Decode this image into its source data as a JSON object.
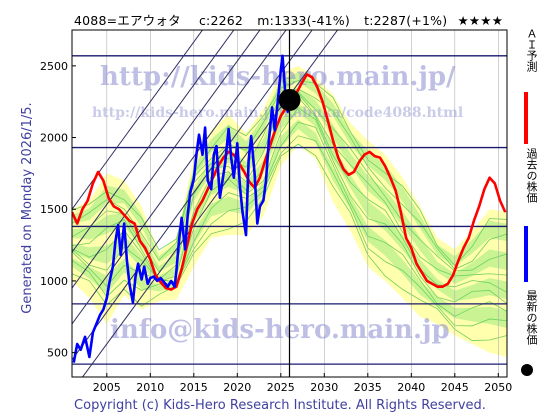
{
  "header": {
    "code": "4088=エアウォタ",
    "current": "c:2262",
    "middle": "m:1333(-41%)",
    "target": "t:2287(+1%)",
    "stars": "★★★★"
  },
  "side_label": "Generated on Monday 2026/1/5.",
  "copyright": "Copyright (c) Kids-Hero Research Institute. All Rights Reserved.",
  "watermarks": {
    "url_main": "http://kids-hero.main.jp/",
    "url_code": "http://kids-hero.main.jp/kabuka/code4088.html",
    "email": "info@kids-hero.main.jp"
  },
  "legend": {
    "prediction": "ＡＩ予測",
    "past": "過去の株価",
    "latest": "最新の株価"
  },
  "colors": {
    "prediction": "#ff0000",
    "past": "#0000ff",
    "latest": "#000000",
    "band_green": "#66dd66",
    "band_yellow": "#ffff99",
    "grid": "#191970",
    "frame": "#000000"
  },
  "chart_data": {
    "type": "line",
    "x_ticks": [
      "2005",
      "2010",
      "2015",
      "2020",
      "2025",
      "2030",
      "2035",
      "2040",
      "2045",
      "2050"
    ],
    "y_ticks": [
      "500",
      "1000",
      "1500",
      "2000",
      "2500"
    ],
    "xlim": [
      2001,
      2051
    ],
    "ylim": [
      330,
      2750
    ],
    "horizontal_levels": [
      420,
      840,
      1380,
      1930,
      2570
    ],
    "current_date_x": 2026.0,
    "latest_point": {
      "x": 2026.0,
      "y": 2262
    },
    "channel_lines": [
      {
        "x0": 2001,
        "y0": 230,
        "x1": 2040,
        "y1": 3450
      },
      {
        "x0": 2001,
        "y0": 450,
        "x1": 2040,
        "y1": 3700
      },
      {
        "x0": 2001,
        "y0": 700,
        "x1": 2040,
        "y1": 3950
      },
      {
        "x0": 2001,
        "y0": 950,
        "x1": 2040,
        "y1": 4200
      },
      {
        "x0": 2001,
        "y0": 1200,
        "x1": 2040,
        "y1": 4450
      },
      {
        "x0": 2001,
        "y0": 1500,
        "x1": 2040,
        "y1": 4750
      }
    ],
    "series": [
      {
        "name": "過去の株価",
        "x": [
          2001.2,
          2001.6,
          2002.0,
          2002.5,
          2003.0,
          2003.4,
          2003.8,
          2004.2,
          2004.6,
          2005.0,
          2005.3,
          2005.7,
          2006.0,
          2006.3,
          2006.6,
          2007.0,
          2007.3,
          2007.6,
          2008.0,
          2008.3,
          2008.6,
          2009.0,
          2009.3,
          2009.7,
          2010.0,
          2010.4,
          2010.8,
          2011.2,
          2011.6,
          2012.0,
          2012.4,
          2012.8,
          2013.0,
          2013.3,
          2013.6,
          2014.0,
          2014.3,
          2014.6,
          2015.0,
          2015.3,
          2015.6,
          2016.0,
          2016.3,
          2016.6,
          2017.0,
          2017.3,
          2017.6,
          2018.0,
          2018.3,
          2018.6,
          2019.0,
          2019.3,
          2019.6,
          2020.0,
          2020.3,
          2020.6,
          2021.0,
          2021.3,
          2021.6,
          2022.0,
          2022.3,
          2022.6,
          2023.0,
          2023.3,
          2023.6,
          2024.0,
          2024.3,
          2024.6,
          2025.0,
          2025.2,
          2025.5,
          2025.8,
          2026.0
        ],
        "values": [
          430,
          560,
          520,
          610,
          470,
          640,
          700,
          760,
          800,
          880,
          990,
          1100,
          1280,
          1390,
          1180,
          1400,
          1150,
          980,
          850,
          1030,
          1120,
          1010,
          1100,
          980,
          1020,
          1030,
          1000,
          1020,
          990,
          960,
          1000,
          960,
          1070,
          1280,
          1440,
          1220,
          1460,
          1620,
          1710,
          1880,
          2020,
          1880,
          2070,
          1700,
          1640,
          1880,
          1940,
          1580,
          1700,
          1820,
          2060,
          1860,
          1720,
          1960,
          1660,
          1480,
          1320,
          1840,
          2010,
          1740,
          1400,
          1520,
          1560,
          1700,
          1960,
          2210,
          2050,
          2220,
          2470,
          2570,
          2320,
          2180,
          2262
        ]
      },
      {
        "name": "ＡＩ予測",
        "x": [
          2001.0,
          2001.6,
          2002.2,
          2002.8,
          2003.4,
          2004.0,
          2004.6,
          2005.2,
          2005.8,
          2006.4,
          2007.0,
          2007.6,
          2008.2,
          2008.8,
          2009.4,
          2010.0,
          2010.6,
          2011.2,
          2011.8,
          2012.4,
          2013.0,
          2013.6,
          2014.2,
          2014.8,
          2015.4,
          2016.0,
          2016.6,
          2017.2,
          2017.8,
          2018.4,
          2019.0,
          2019.6,
          2020.2,
          2020.8,
          2021.4,
          2022.0,
          2022.6,
          2023.2,
          2023.8,
          2024.4,
          2025.0,
          2025.6,
          2026.2,
          2026.8,
          2027.4,
          2028.0,
          2028.6,
          2029.2,
          2029.8,
          2030.4,
          2031.0,
          2031.6,
          2032.2,
          2032.8,
          2033.4,
          2034.0,
          2034.6,
          2035.2,
          2035.8,
          2036.4,
          2037.0,
          2037.6,
          2038.2,
          2038.8,
          2039.4,
          2040.0,
          2040.6,
          2041.2,
          2041.8,
          2042.4,
          2043.0,
          2043.6,
          2044.2,
          2044.8,
          2045.4,
          2046.0,
          2046.6,
          2047.2,
          2047.8,
          2048.4,
          2049.0,
          2049.6,
          2050.2,
          2050.8
        ],
        "values": [
          1480,
          1400,
          1500,
          1560,
          1680,
          1760,
          1700,
          1580,
          1520,
          1500,
          1460,
          1420,
          1400,
          1280,
          1230,
          1150,
          1040,
          990,
          950,
          940,
          960,
          1080,
          1240,
          1400,
          1500,
          1560,
          1640,
          1720,
          1800,
          1860,
          1900,
          1880,
          1820,
          1760,
          1690,
          1650,
          1720,
          1840,
          1950,
          2060,
          2150,
          2210,
          2250,
          2310,
          2380,
          2440,
          2420,
          2350,
          2250,
          2120,
          1980,
          1860,
          1780,
          1740,
          1760,
          1830,
          1880,
          1900,
          1870,
          1860,
          1800,
          1720,
          1630,
          1480,
          1300,
          1230,
          1120,
          1060,
          1000,
          980,
          960,
          960,
          980,
          1040,
          1140,
          1230,
          1300,
          1420,
          1520,
          1640,
          1720,
          1680,
          1560,
          1480
        ]
      }
    ],
    "band": {
      "x": [
        2001.0,
        2003.0,
        2005.0,
        2007.0,
        2009.0,
        2011.0,
        2013.0,
        2015.0,
        2017.0,
        2019.0,
        2021.0,
        2023.0,
        2025.0,
        2027.0,
        2029.0,
        2031.0,
        2033.0,
        2035.0,
        2037.0,
        2039.0,
        2041.0,
        2043.0,
        2045.0,
        2047.0,
        2049.0,
        2051.0
      ],
      "upper": [
        1500,
        1560,
        1750,
        1700,
        1520,
        1200,
        1300,
        1860,
        2050,
        2160,
        2030,
        2200,
        2450,
        2500,
        2420,
        2300,
        2100,
        1980,
        1880,
        1720,
        1520,
        1300,
        1220,
        1350,
        1500,
        1480
      ],
      "lower": [
        1000,
        880,
        700,
        900,
        800,
        860,
        870,
        1100,
        1300,
        1320,
        1320,
        1450,
        1800,
        1950,
        1850,
        1550,
        1350,
        1100,
        1000,
        880,
        750,
        700,
        620,
        560,
        500,
        470
      ]
    }
  }
}
